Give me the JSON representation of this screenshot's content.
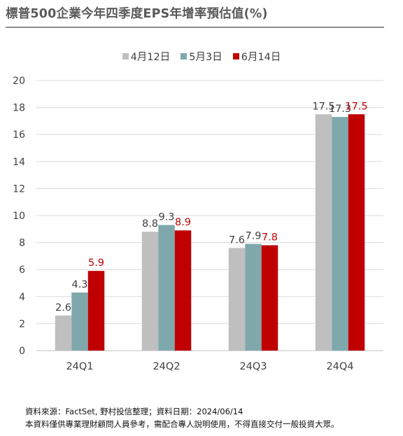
{
  "title": "標普500企業今年四季度EPS年增率預估值(%)",
  "chart_data": {
    "type": "bar",
    "title": "標普500企業今年四季度EPS年增率預估值(%)",
    "categories": [
      "24Q1",
      "24Q2",
      "24Q3",
      "24Q4"
    ],
    "series": [
      {
        "name": "4月12日",
        "color": "#bfbfbf",
        "label_color": "#404040",
        "values": [
          2.6,
          8.8,
          7.6,
          17.5
        ]
      },
      {
        "name": "5月3日",
        "color": "#7fa8ad",
        "label_color": "#404040",
        "values": [
          4.3,
          9.3,
          7.9,
          17.3
        ]
      },
      {
        "name": "6月14日",
        "color": "#c00000",
        "label_color": "#c00000",
        "values": [
          5.9,
          8.9,
          7.8,
          17.5
        ]
      }
    ],
    "value_labels": [
      [
        "2.6",
        "8.8",
        "7.6",
        "17.5"
      ],
      [
        "4.3",
        "9.3",
        "7.9",
        "17.3"
      ],
      [
        "5.9",
        "8.9",
        "7.8",
        "17.5"
      ]
    ],
    "ylim": [
      0,
      20
    ],
    "yticks": [
      "0",
      "2",
      "4",
      "6",
      "8",
      "10",
      "12",
      "14",
      "16",
      "18",
      "20"
    ],
    "grid": true,
    "legend_position": "top"
  },
  "footer": {
    "source": "資料來源：FactSet, 野村投信整理；資料日期：2024/06/14",
    "disclaimer": "本資料僅供專業理財顧問人員參考，需配合專人說明使用，不得直接交付一般投資大眾。"
  }
}
